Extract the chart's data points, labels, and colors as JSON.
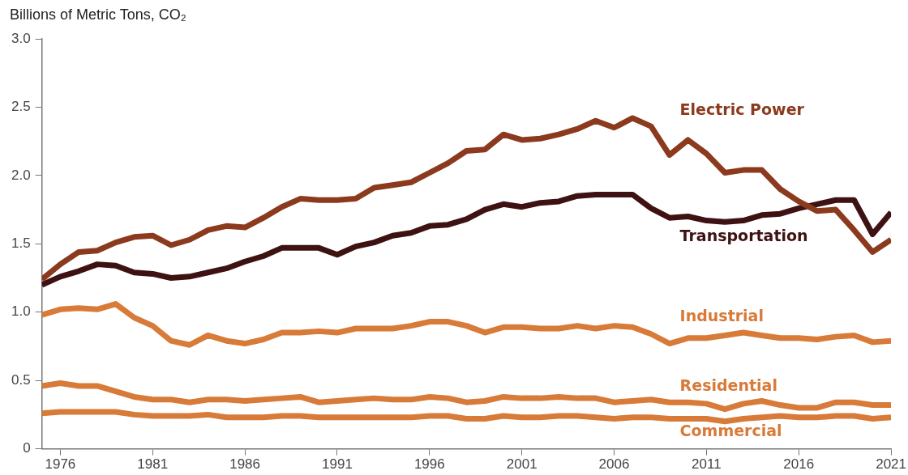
{
  "chart_data": {
    "type": "line",
    "ylabel": "Billions of Metric Tons, CO₂",
    "x": [
      1975,
      1976,
      1977,
      1978,
      1979,
      1980,
      1981,
      1982,
      1983,
      1984,
      1985,
      1986,
      1987,
      1988,
      1989,
      1990,
      1991,
      1992,
      1993,
      1994,
      1995,
      1996,
      1997,
      1998,
      1999,
      2000,
      2001,
      2002,
      2003,
      2004,
      2005,
      2006,
      2007,
      2008,
      2009,
      2010,
      2011,
      2012,
      2013,
      2014,
      2015,
      2016,
      2017,
      2018,
      2019,
      2020,
      2021
    ],
    "series": [
      {
        "name": "Electric Power",
        "color": "#8b3a1e",
        "values": [
          1.24,
          1.35,
          1.44,
          1.45,
          1.51,
          1.55,
          1.56,
          1.49,
          1.53,
          1.6,
          1.63,
          1.62,
          1.69,
          1.77,
          1.83,
          1.82,
          1.82,
          1.83,
          1.91,
          1.93,
          1.95,
          2.02,
          2.09,
          2.18,
          2.19,
          2.3,
          2.26,
          2.27,
          2.3,
          2.34,
          2.4,
          2.35,
          2.42,
          2.36,
          2.15,
          2.26,
          2.16,
          2.02,
          2.04,
          2.04,
          1.9,
          1.81,
          1.74,
          1.75,
          1.6,
          1.44,
          1.53
        ]
      },
      {
        "name": "Transportation",
        "color": "#3e1212",
        "values": [
          1.2,
          1.26,
          1.3,
          1.35,
          1.34,
          1.29,
          1.28,
          1.25,
          1.26,
          1.29,
          1.32,
          1.37,
          1.41,
          1.47,
          1.47,
          1.47,
          1.42,
          1.48,
          1.51,
          1.56,
          1.58,
          1.63,
          1.64,
          1.68,
          1.75,
          1.79,
          1.77,
          1.8,
          1.81,
          1.85,
          1.86,
          1.86,
          1.86,
          1.76,
          1.69,
          1.7,
          1.67,
          1.66,
          1.67,
          1.71,
          1.72,
          1.76,
          1.79,
          1.82,
          1.82,
          1.57,
          1.73
        ]
      },
      {
        "name": "Industrial",
        "color": "#d87a38",
        "values": [
          0.98,
          1.02,
          1.03,
          1.02,
          1.06,
          0.96,
          0.9,
          0.79,
          0.76,
          0.83,
          0.79,
          0.77,
          0.8,
          0.85,
          0.85,
          0.86,
          0.85,
          0.88,
          0.88,
          0.88,
          0.9,
          0.93,
          0.93,
          0.9,
          0.85,
          0.89,
          0.89,
          0.88,
          0.88,
          0.9,
          0.88,
          0.9,
          0.89,
          0.84,
          0.77,
          0.81,
          0.81,
          0.83,
          0.85,
          0.83,
          0.81,
          0.81,
          0.8,
          0.82,
          0.83,
          0.78,
          0.79
        ]
      },
      {
        "name": "Residential",
        "color": "#d87a38",
        "values": [
          0.46,
          0.48,
          0.46,
          0.46,
          0.42,
          0.38,
          0.36,
          0.36,
          0.34,
          0.36,
          0.36,
          0.35,
          0.36,
          0.37,
          0.38,
          0.34,
          0.35,
          0.36,
          0.37,
          0.36,
          0.36,
          0.38,
          0.37,
          0.34,
          0.35,
          0.38,
          0.37,
          0.37,
          0.38,
          0.37,
          0.37,
          0.34,
          0.35,
          0.36,
          0.34,
          0.34,
          0.33,
          0.29,
          0.33,
          0.35,
          0.32,
          0.3,
          0.3,
          0.34,
          0.34,
          0.32,
          0.32
        ]
      },
      {
        "name": "Commercial",
        "color": "#d87a38",
        "values": [
          0.26,
          0.27,
          0.27,
          0.27,
          0.27,
          0.25,
          0.24,
          0.24,
          0.24,
          0.25,
          0.23,
          0.23,
          0.23,
          0.24,
          0.24,
          0.23,
          0.23,
          0.23,
          0.23,
          0.23,
          0.23,
          0.24,
          0.24,
          0.22,
          0.22,
          0.24,
          0.23,
          0.23,
          0.24,
          0.24,
          0.23,
          0.22,
          0.23,
          0.23,
          0.22,
          0.22,
          0.22,
          0.2,
          0.22,
          0.23,
          0.24,
          0.23,
          0.23,
          0.24,
          0.24,
          0.22,
          0.23
        ]
      }
    ],
    "xlim": [
      1975,
      2021
    ],
    "xticks": [
      1976,
      1981,
      1986,
      1991,
      1996,
      2001,
      2006,
      2011,
      2016,
      2021
    ],
    "ylim": [
      0,
      3.0
    ],
    "yticks": [
      0,
      0.5,
      {
        "value": 1,
        "label": "1.0"
      },
      1.5,
      {
        "value": 2,
        "label": "2.0"
      },
      2.5,
      {
        "value": 3,
        "label": "3.0"
      }
    ],
    "grid": false,
    "legend": false,
    "marker": "none",
    "line_style": "solid"
  }
}
